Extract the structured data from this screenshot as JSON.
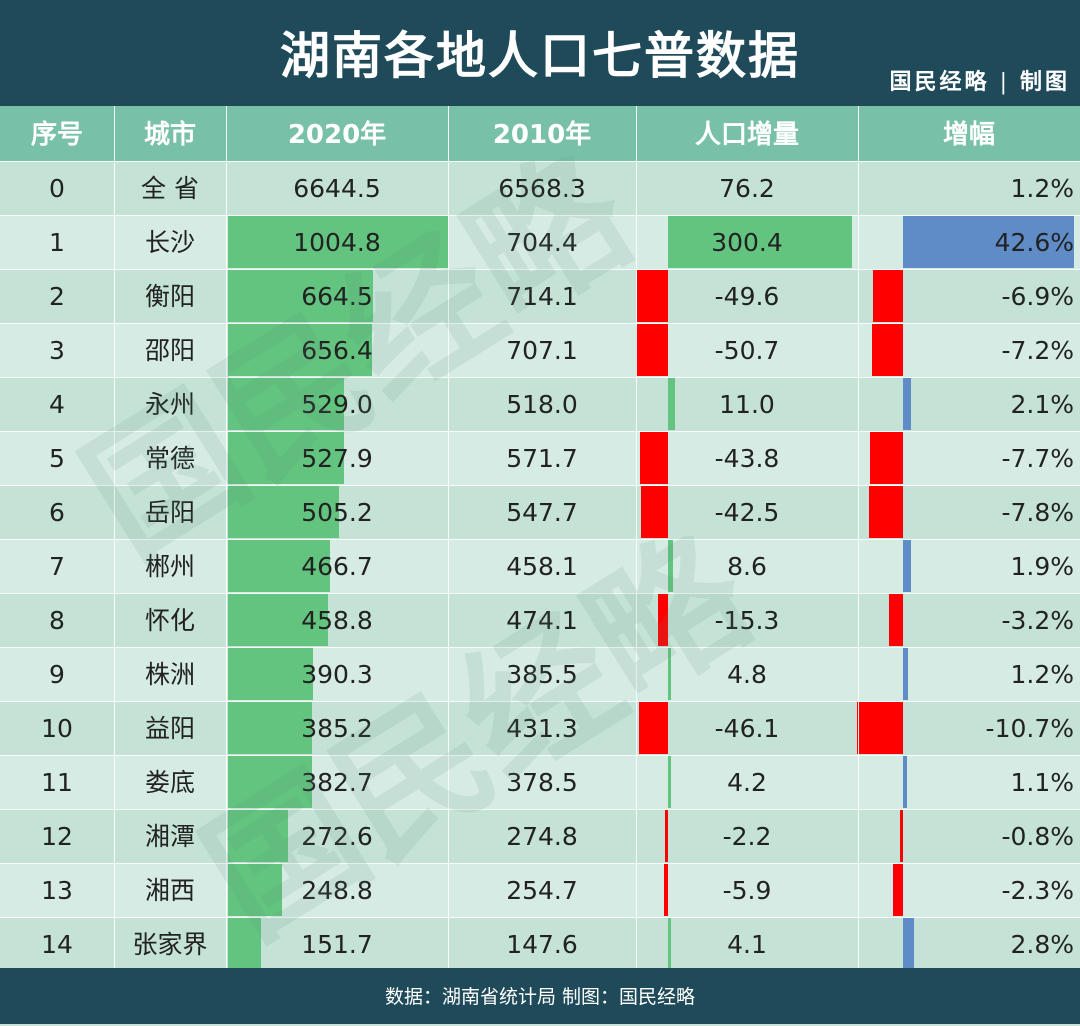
{
  "title": "湖南各地人口七普数据",
  "brand": {
    "name": "国民经略",
    "separator": "|",
    "suffix": "制图"
  },
  "footer": "数据：湖南省统计局 制图：国民经略",
  "watermark": "国民经略",
  "colors": {
    "header_bg": "#1f4a5a",
    "colhead_bg": "#79c0a9",
    "bar_green": "#62c47e",
    "bar_red": "#ff0000",
    "bar_blue": "#5f8cc6"
  },
  "chart_data": {
    "type": "table",
    "title": "湖南各地人口七普数据",
    "columns": [
      "序号",
      "城市",
      "2020年",
      "2010年",
      "人口增量",
      "增幅"
    ],
    "rows": [
      {
        "rank": "0",
        "city": "全  省",
        "pop2020": "6644.5",
        "pop2010": "6568.3",
        "change": "76.2",
        "growth": "1.2%"
      },
      {
        "rank": "1",
        "city": "长沙",
        "pop2020": "1004.8",
        "pop2010": "704.4",
        "change": "300.4",
        "growth": "42.6%"
      },
      {
        "rank": "2",
        "city": "衡阳",
        "pop2020": "664.5",
        "pop2010": "714.1",
        "change": "-49.6",
        "growth": "-6.9%"
      },
      {
        "rank": "3",
        "city": "邵阳",
        "pop2020": "656.4",
        "pop2010": "707.1",
        "change": "-50.7",
        "growth": "-7.2%"
      },
      {
        "rank": "4",
        "city": "永州",
        "pop2020": "529.0",
        "pop2010": "518.0",
        "change": "11.0",
        "growth": "2.1%"
      },
      {
        "rank": "5",
        "city": "常德",
        "pop2020": "527.9",
        "pop2010": "571.7",
        "change": "-43.8",
        "growth": "-7.7%"
      },
      {
        "rank": "6",
        "city": "岳阳",
        "pop2020": "505.2",
        "pop2010": "547.7",
        "change": "-42.5",
        "growth": "-7.8%"
      },
      {
        "rank": "7",
        "city": "郴州",
        "pop2020": "466.7",
        "pop2010": "458.1",
        "change": "8.6",
        "growth": "1.9%"
      },
      {
        "rank": "8",
        "city": "怀化",
        "pop2020": "458.8",
        "pop2010": "474.1",
        "change": "-15.3",
        "growth": "-3.2%"
      },
      {
        "rank": "9",
        "city": "株洲",
        "pop2020": "390.3",
        "pop2010": "385.5",
        "change": "4.8",
        "growth": "1.2%"
      },
      {
        "rank": "10",
        "city": "益阳",
        "pop2020": "385.2",
        "pop2010": "431.3",
        "change": "-46.1",
        "growth": "-10.7%"
      },
      {
        "rank": "11",
        "city": "娄底",
        "pop2020": "382.7",
        "pop2010": "378.5",
        "change": "4.2",
        "growth": "1.1%"
      },
      {
        "rank": "12",
        "city": "湘潭",
        "pop2020": "272.6",
        "pop2010": "274.8",
        "change": "-2.2",
        "growth": "-0.8%"
      },
      {
        "rank": "13",
        "city": "湘西",
        "pop2020": "248.8",
        "pop2010": "254.7",
        "change": "-5.9",
        "growth": "-2.3%"
      },
      {
        "rank": "14",
        "city": "张家界",
        "pop2020": "151.7",
        "pop2010": "147.6",
        "change": "4.1",
        "growth": "2.8%"
      }
    ],
    "bar_columns": [
      "2020年",
      "人口增量",
      "增幅"
    ]
  }
}
